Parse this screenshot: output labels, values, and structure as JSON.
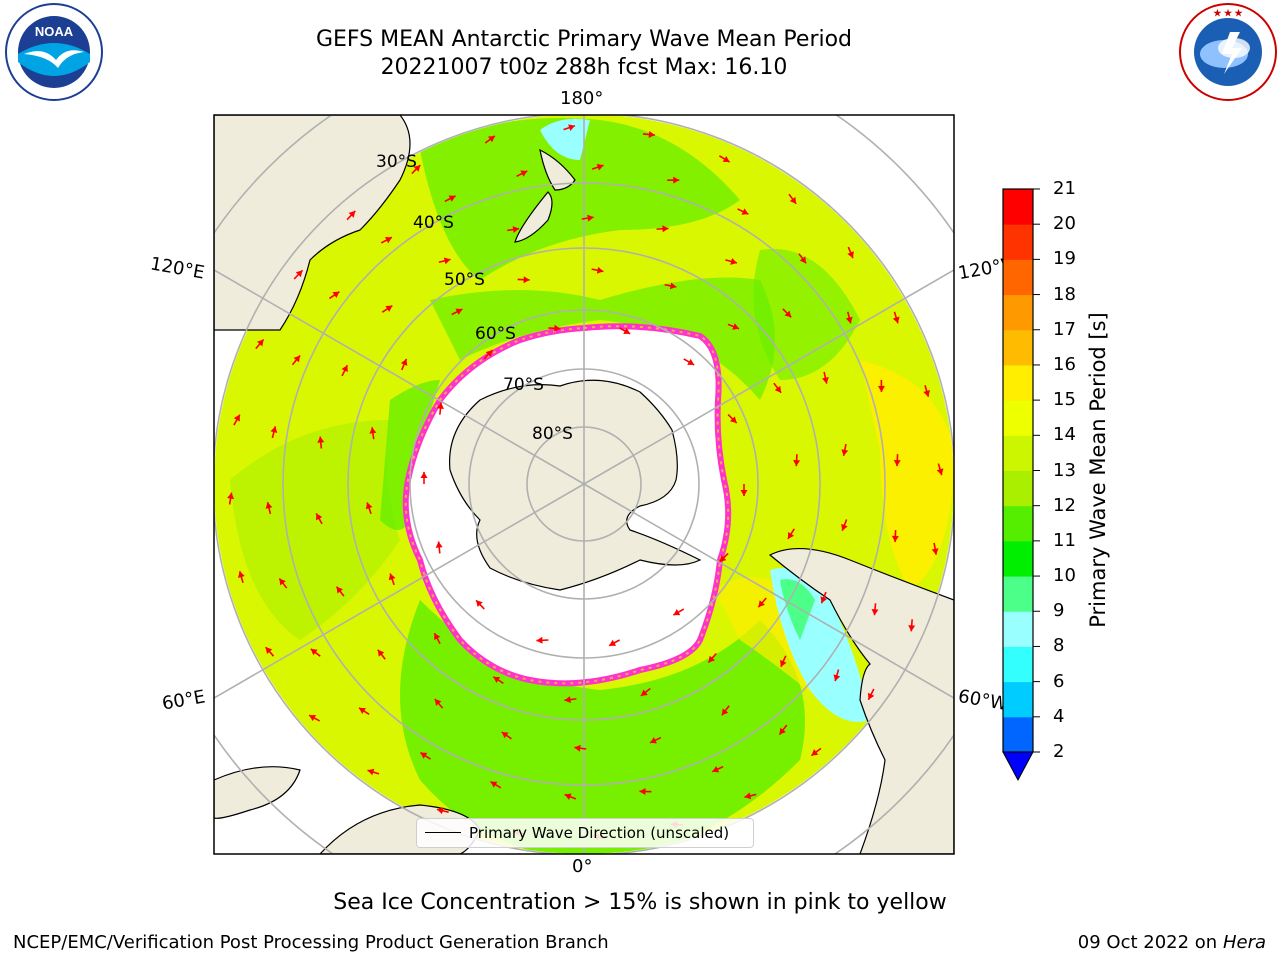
{
  "header": {
    "title_line1": "GEFS MEAN Antarctic Primary Wave Mean Period",
    "title_line2": "20221007 t00z 288h fcst   Max: 16.10"
  },
  "logos": {
    "left_logo_text": "NOAA",
    "left_logo_ring": "NATIONAL OCEANIC AND ATMOSPHERIC ADMINISTRATION · U.S. DEPARTMENT OF COMMERCE",
    "right_logo_ring": "NATIONAL WEATHER SERVICE"
  },
  "map": {
    "longitude_labels": {
      "top": "180°",
      "bottom": "0°",
      "upper_left": "120°E",
      "lower_left": "60°E",
      "upper_right": "120°W",
      "lower_right": "60°W"
    },
    "latitude_labels": [
      "30°S",
      "40°S",
      "50°S",
      "60°S",
      "70°S",
      "80°S"
    ],
    "legend_label": "Primary Wave Direction (unscaled)",
    "arrow_color": "#ff0000",
    "land_color": "#efecdc",
    "ice_edge_color": "#ff33cc"
  },
  "colorbar": {
    "label": "Primary Wave Mean Period [s]",
    "ticks": [
      "21",
      "20",
      "19",
      "18",
      "17",
      "16",
      "15",
      "14",
      "13",
      "12",
      "11",
      "10",
      "9",
      "8",
      "6",
      "4",
      "2"
    ],
    "colors_bottom_to_top": [
      "#0066ff",
      "#00ccff",
      "#33ffff",
      "#99ffff",
      "#4cff88",
      "#00ee00",
      "#55ee00",
      "#aaee00",
      "#ccf500",
      "#eeff00",
      "#ffee00",
      "#ffbb00",
      "#ff9900",
      "#ff6600",
      "#ff3300",
      "#ff0000"
    ],
    "under_color": "#0000ff"
  },
  "footer": {
    "note": "Sea Ice Concentration > 15% is shown in pink to yellow",
    "credit": "NCEP/EMC/Verification Post Processing Product Generation Branch",
    "date": "09 Oct 2022 on ",
    "machine": "Hera"
  }
}
